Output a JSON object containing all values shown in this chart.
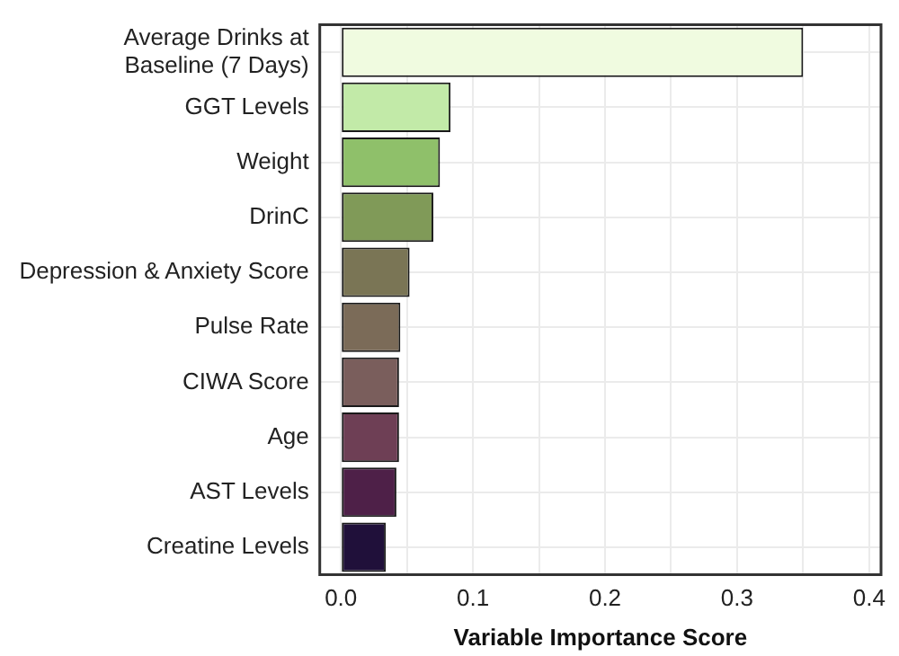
{
  "chart_data": {
    "type": "bar",
    "orientation": "horizontal",
    "xlabel": "Variable Importance Score",
    "categories": [
      "Average Drinks at Baseline (7 Days)",
      "GGT Levels",
      "Weight",
      "DrinC",
      "Depression & Anxiety Score",
      "Pulse Rate",
      "CIWA Score",
      "Age",
      "AST Levels",
      "Creatine Levels"
    ],
    "values": [
      0.35,
      0.083,
      0.075,
      0.07,
      0.052,
      0.045,
      0.044,
      0.044,
      0.042,
      0.034
    ],
    "colors": [
      "#f0fbe0",
      "#c2eaa8",
      "#8fc06a",
      "#809a58",
      "#7a7555",
      "#7b6b58",
      "#7a5e5c",
      "#6e3f55",
      "#4e2048",
      "#20103a"
    ],
    "xlim": [
      -0.016,
      0.409
    ],
    "xticks": [
      {
        "value": 0,
        "label": "0.0"
      },
      {
        "value": 0.05,
        "label": null
      },
      0.1,
      {
        "value": 0.15,
        "label": null
      },
      0.2,
      {
        "value": 0.25,
        "label": null
      },
      0.3,
      {
        "value": 0.35,
        "label": null
      },
      0.4
    ],
    "grid": true,
    "legend": false
  }
}
